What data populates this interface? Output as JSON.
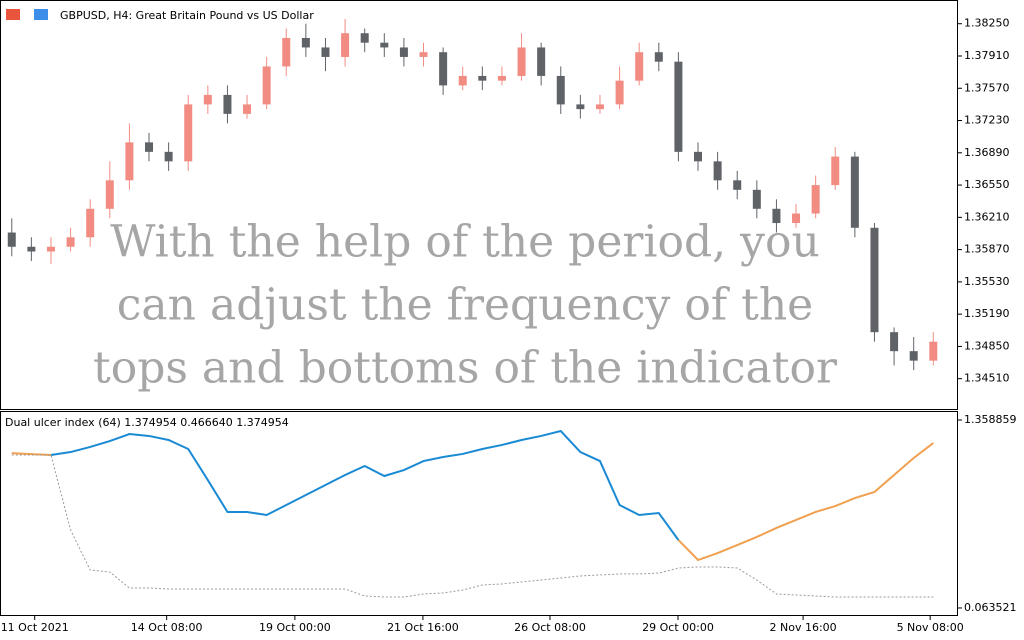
{
  "header": {
    "title": "GBPUSD, H4:  Great Britain Pound vs US Dollar"
  },
  "chart_data": [
    {
      "type": "candlestick",
      "up_color": "#f28c82",
      "down_color": "#5f6368",
      "annotations": [
        "With the help of the period, you",
        "can adjust the frequency of the",
        "tops and bottoms of the indicator"
      ],
      "x": [
        0,
        1,
        2,
        3,
        4,
        5,
        6,
        7,
        8,
        9,
        10,
        11,
        12,
        13,
        14,
        15,
        16,
        17,
        18,
        19,
        20,
        21,
        22,
        23,
        24,
        25,
        26,
        27,
        28,
        29,
        30,
        31,
        32,
        33,
        34,
        35,
        36,
        37,
        38,
        39,
        40,
        41,
        42,
        43,
        44,
        45,
        46,
        47
      ],
      "open": [
        1.3605,
        1.359,
        1.3585,
        1.359,
        1.36,
        1.363,
        1.366,
        1.37,
        1.369,
        1.368,
        1.374,
        1.375,
        1.373,
        1.374,
        1.378,
        1.381,
        1.38,
        1.379,
        1.3815,
        1.3805,
        1.38,
        1.379,
        1.3795,
        1.376,
        1.377,
        1.3765,
        1.377,
        1.38,
        1.377,
        1.374,
        1.3735,
        1.374,
        1.3765,
        1.3795,
        1.3785,
        1.369,
        1.368,
        1.366,
        1.365,
        1.363,
        1.3615,
        1.3625,
        1.3655,
        1.3685,
        1.361,
        1.35,
        1.348,
        1.347
      ],
      "high": [
        1.362,
        1.36,
        1.36,
        1.361,
        1.364,
        1.368,
        1.372,
        1.371,
        1.37,
        1.375,
        1.376,
        1.376,
        1.375,
        1.379,
        1.382,
        1.3825,
        1.381,
        1.383,
        1.382,
        1.3815,
        1.381,
        1.3805,
        1.38,
        1.378,
        1.378,
        1.378,
        1.3815,
        1.3805,
        1.378,
        1.375,
        1.375,
        1.378,
        1.3805,
        1.3805,
        1.3795,
        1.37,
        1.369,
        1.367,
        1.366,
        1.364,
        1.3635,
        1.3665,
        1.3695,
        1.369,
        1.3615,
        1.3505,
        1.3495,
        1.35
      ],
      "low": [
        1.358,
        1.3575,
        1.3572,
        1.3585,
        1.359,
        1.362,
        1.365,
        1.368,
        1.367,
        1.367,
        1.373,
        1.372,
        1.3725,
        1.3735,
        1.377,
        1.379,
        1.3775,
        1.378,
        1.3795,
        1.379,
        1.378,
        1.378,
        1.375,
        1.3755,
        1.3755,
        1.376,
        1.3765,
        1.376,
        1.373,
        1.3725,
        1.373,
        1.3735,
        1.376,
        1.3775,
        1.368,
        1.367,
        1.365,
        1.364,
        1.362,
        1.3605,
        1.361,
        1.362,
        1.365,
        1.36,
        1.349,
        1.3465,
        1.346,
        1.3465
      ],
      "close": [
        1.359,
        1.3585,
        1.359,
        1.36,
        1.363,
        1.366,
        1.37,
        1.369,
        1.368,
        1.374,
        1.375,
        1.373,
        1.374,
        1.378,
        1.381,
        1.38,
        1.379,
        1.3815,
        1.3805,
        1.38,
        1.379,
        1.3795,
        1.376,
        1.377,
        1.3765,
        1.377,
        1.38,
        1.377,
        1.374,
        1.3735,
        1.374,
        1.3765,
        1.3795,
        1.3785,
        1.369,
        1.368,
        1.366,
        1.365,
        1.363,
        1.3615,
        1.3625,
        1.3655,
        1.3685,
        1.361,
        1.35,
        1.348,
        1.347,
        1.349
      ],
      "xlim": [
        -0.6,
        48.26
      ],
      "ylim": [
        1.3418,
        1.385
      ],
      "yticks": [
        {
          "value": 1.3825,
          "label": "1.38250"
        },
        {
          "value": 1.3791,
          "label": "1.37910"
        },
        {
          "value": 1.3757,
          "label": "1.37570"
        },
        {
          "value": 1.3723,
          "label": "1.37230"
        },
        {
          "value": 1.3689,
          "label": "1.36890"
        },
        {
          "value": 1.3655,
          "label": "1.36550"
        },
        {
          "value": 1.3621,
          "label": "1.36210"
        },
        {
          "value": 1.3587,
          "label": "1.35870"
        },
        {
          "value": 1.3553,
          "label": "1.35530"
        },
        {
          "value": 1.3519,
          "label": "1.35190"
        },
        {
          "value": 1.3485,
          "label": "1.34850"
        },
        {
          "value": 1.3451,
          "label": "1.34510"
        }
      ]
    },
    {
      "type": "line",
      "title": "Dual ulcer index (64) 1.374954 0.466640 1.374954",
      "x": [
        0,
        1,
        2,
        3,
        4,
        5,
        6,
        7,
        8,
        9,
        10,
        11,
        12,
        13,
        14,
        15,
        16,
        17,
        18,
        19,
        20,
        21,
        22,
        23,
        24,
        25,
        26,
        27,
        28,
        29,
        30,
        31,
        32,
        33,
        34,
        35,
        36,
        37,
        38,
        39,
        40,
        41,
        42,
        43,
        44,
        45,
        46,
        47
      ],
      "series": [
        {
          "color": "#1a8ad4",
          "values": [
            null,
            null,
            1.118,
            1.138,
            1.173,
            1.214,
            1.262,
            1.249,
            1.221,
            1.159,
            0.945,
            0.725,
            0.725,
            0.704,
            0.773,
            0.842,
            0.911,
            0.98,
            1.042,
            0.973,
            1.014,
            1.076,
            1.104,
            1.125,
            1.159,
            1.187,
            1.221,
            1.249,
            1.283,
            1.138,
            1.076,
            0.773,
            0.704,
            0.718,
            0.532,
            null,
            null,
            null,
            null,
            null,
            null,
            null,
            null,
            null,
            null,
            null,
            null,
            null
          ]
        },
        {
          "color": "#f0a050",
          "values": [
            1.131,
            1.124,
            1.118,
            null,
            null,
            null,
            null,
            null,
            null,
            null,
            null,
            null,
            null,
            null,
            null,
            null,
            null,
            null,
            null,
            null,
            null,
            null,
            null,
            null,
            null,
            null,
            null,
            null,
            null,
            null,
            null,
            null,
            null,
            null,
            0.532,
            0.394,
            0.442,
            0.497,
            0.553,
            0.615,
            0.67,
            0.725,
            0.766,
            0.821,
            0.863,
            0.98,
            1.097,
            1.2
          ]
        },
        {
          "color": "#999999",
          "dash": true,
          "values": [
            1.118,
            1.118,
            1.118,
            0.601,
            0.325,
            0.311,
            0.201,
            0.201,
            0.194,
            0.194,
            0.194,
            0.194,
            0.194,
            0.194,
            0.194,
            0.194,
            0.194,
            0.194,
            0.146,
            0.139,
            0.139,
            0.16,
            0.167,
            0.187,
            0.222,
            0.229,
            0.243,
            0.256,
            0.27,
            0.284,
            0.291,
            0.298,
            0.298,
            0.304,
            0.339,
            0.346,
            0.346,
            0.339,
            0.256,
            0.16,
            0.153,
            0.146,
            0.139,
            0.139,
            0.139,
            0.139,
            0.139,
            0.139
          ]
        }
      ],
      "xlim": [
        -0.6,
        48.26
      ],
      "ylim": [
        0.015,
        1.414
      ],
      "yticks": [
        1.358859,
        0.063521
      ],
      "xticks": [
        {
          "value": 1.17,
          "label": "11 Oct 2021"
        },
        {
          "value": 7.9,
          "label": "14 Oct 08:00"
        },
        {
          "value": 14.44,
          "label": "19 Oct 00:00"
        },
        {
          "value": 20.97,
          "label": "21 Oct 16:00"
        },
        {
          "value": 27.45,
          "label": "26 Oct 08:00"
        },
        {
          "value": 33.98,
          "label": "29 Oct 00:00"
        },
        {
          "value": 40.36,
          "label": "2 Nov 16:00"
        },
        {
          "value": 46.84,
          "label": "5 Nov 08:00"
        }
      ]
    }
  ]
}
